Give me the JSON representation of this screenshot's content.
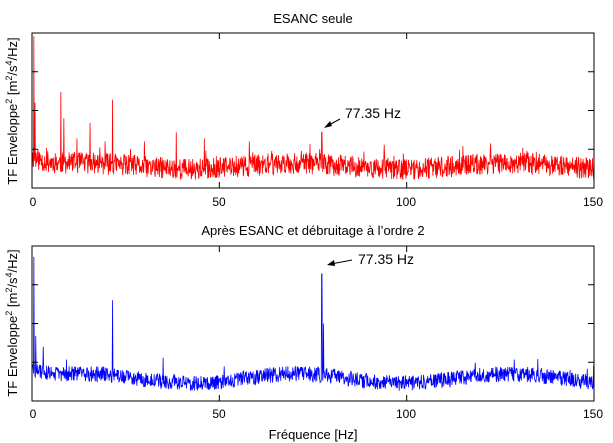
{
  "chart_data": [
    {
      "type": "line",
      "title": "ESANC seule",
      "ylabel": "TF Enveloppe",
      "ylabel_sup": "2",
      "yunit_open": " [m",
      "yunit_sup1": "2",
      "yunit_mid": "/s",
      "yunit_sup2": "4",
      "yunit_close": "/Hz]",
      "xlabel": "",
      "xlim": [
        0,
        150
      ],
      "ylim": [
        0,
        1
      ],
      "xticks": [
        0,
        50,
        100,
        150
      ],
      "xtick_labels": [
        "0",
        "50",
        "100",
        "150"
      ],
      "yticks": [
        0.25,
        0.5,
        0.75
      ],
      "grid": false,
      "series": [
        {
          "name": "ESANC seule",
          "color": "#ff0000"
        }
      ],
      "peaks": [
        {
          "x": 0.5,
          "y": 0.98
        },
        {
          "x": 0.8,
          "y": 0.55
        },
        {
          "x": 7.7,
          "y": 0.62
        },
        {
          "x": 8.5,
          "y": 0.45
        },
        {
          "x": 12.0,
          "y": 0.32
        },
        {
          "x": 15.5,
          "y": 0.42
        },
        {
          "x": 19.5,
          "y": 0.3
        },
        {
          "x": 21.5,
          "y": 0.57
        },
        {
          "x": 30.0,
          "y": 0.3
        },
        {
          "x": 38.5,
          "y": 0.36
        },
        {
          "x": 46.0,
          "y": 0.32
        },
        {
          "x": 58.0,
          "y": 0.3
        },
        {
          "x": 77.35,
          "y": 0.36
        },
        {
          "x": 94.0,
          "y": 0.28
        },
        {
          "x": 115.0,
          "y": 0.27
        },
        {
          "x": 131.0,
          "y": 0.26
        }
      ],
      "annotation": {
        "text": "77.35 Hz",
        "x": 77.35,
        "y": 0.36
      }
    },
    {
      "type": "line",
      "title": "Après ESANC et débruitage à l’ordre 2",
      "ylabel": "TF Enveloppe",
      "ylabel_sup": "2",
      "yunit_open": " [m",
      "yunit_sup1": "2",
      "yunit_mid": "/s",
      "yunit_sup2": "4",
      "yunit_close": "/Hz]",
      "xlabel": "Fréquence [Hz]",
      "xlim": [
        0,
        150
      ],
      "ylim": [
        0,
        1
      ],
      "xticks": [
        0,
        50,
        100,
        150
      ],
      "xtick_labels": [
        "0",
        "50",
        "100",
        "150"
      ],
      "yticks": [
        0.25,
        0.5,
        0.75
      ],
      "grid": false,
      "series": [
        {
          "name": "Après ESANC et débruitage",
          "color": "#0000ff"
        }
      ],
      "peaks": [
        {
          "x": 0.5,
          "y": 0.93
        },
        {
          "x": 1.0,
          "y": 0.42
        },
        {
          "x": 3.0,
          "y": 0.35
        },
        {
          "x": 21.5,
          "y": 0.65
        },
        {
          "x": 35.0,
          "y": 0.28
        },
        {
          "x": 77.35,
          "y": 0.82
        },
        {
          "x": 77.8,
          "y": 0.5
        },
        {
          "x": 135.0,
          "y": 0.27
        }
      ],
      "annotation": {
        "text": "77.35 Hz",
        "x": 77.35,
        "y": 0.82
      }
    }
  ]
}
